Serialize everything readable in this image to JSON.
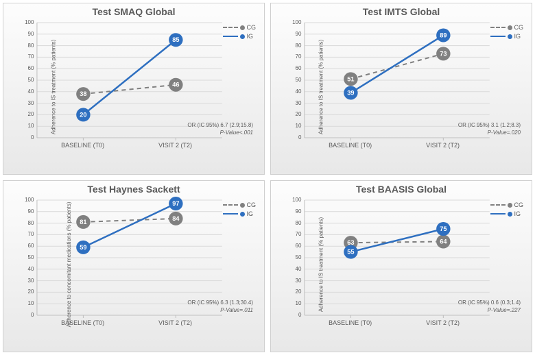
{
  "layout": {
    "rows": 2,
    "cols": 2,
    "panel_bg_gradient": [
      "#fdfdfd",
      "#e8e8e8"
    ],
    "panel_border": "#cfcfcf"
  },
  "common": {
    "categories": [
      "BASELINE (T0)",
      "VISIT 2 (T2)"
    ],
    "ylim": [
      0,
      100
    ],
    "ytick_step": 10,
    "grid_color": "#d9d9d9",
    "axis_color": "#bfbfbf",
    "text_color": "#5a5a5a",
    "series": {
      "CG": {
        "label": "CG",
        "color": "#808080",
        "dash": "6,5",
        "marker_fill": "#808080",
        "line_width": 2
      },
      "IG": {
        "label": "IG",
        "color": "#2e6fc0",
        "dash": "",
        "marker_fill": "#2e6fc0",
        "line_width": 2.5
      }
    },
    "marker_radius": 10,
    "marker_label_color": "#ffffff",
    "marker_label_fontsize": 9,
    "title_fontsize": 14,
    "tick_fontsize": 9
  },
  "panels": [
    {
      "title": "Test SMAQ Global",
      "ylabel": "Adherence to IS treatment (% patients)",
      "CG": [
        38,
        46
      ],
      "IG": [
        20,
        85
      ],
      "stat_or": "OR (IC 95%) 6.7 (2.9;15.8)",
      "stat_p": "P-Value<.001"
    },
    {
      "title": "Test IMTS Global",
      "ylabel": "Adherence to IS treatment (% patients)",
      "CG": [
        51,
        73
      ],
      "IG": [
        39,
        89
      ],
      "stat_or": "OR (IC 95%) 3.1 (1.2;8.3)",
      "stat_p": "P-Value=.020"
    },
    {
      "title": "Test Haynes Sackett",
      "ylabel": "Adherence to concomitant medications (% patients)",
      "CG": [
        81,
        84
      ],
      "IG": [
        59,
        97
      ],
      "stat_or": "OR (IC 95%) 6.3 (1.3;30.4)",
      "stat_p": "P-Value=.011"
    },
    {
      "title": "Test BAASIS Global",
      "ylabel": "Adherence to IS treatment (% patients)",
      "CG": [
        63,
        64
      ],
      "IG": [
        55,
        75
      ],
      "stat_or": "OR (IC 95%) 0.6 (0.3;1.4)",
      "stat_p": "P-Value=.227"
    }
  ]
}
